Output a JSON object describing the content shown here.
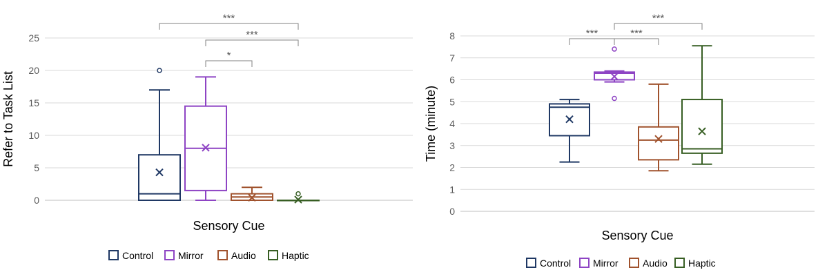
{
  "chart_data": [
    {
      "type": "box",
      "title": "",
      "xlabel": "Sensory Cue",
      "ylabel": "Refer to Task List",
      "ylim": [
        0,
        25
      ],
      "yticks": [
        0,
        5,
        10,
        15,
        20,
        25
      ],
      "grid": true,
      "legend_position": "bottom",
      "series": [
        {
          "name": "Control",
          "color": "#1f3864",
          "min": 0,
          "q1": 0,
          "median": 1,
          "q3": 7,
          "max": 17,
          "mean": 4.3,
          "outliers": [
            20
          ]
        },
        {
          "name": "Mirror",
          "color": "#8e44c4",
          "min": 0,
          "q1": 1.5,
          "median": 8,
          "q3": 14.5,
          "max": 19,
          "mean": 8.1,
          "outliers": []
        },
        {
          "name": "Audio",
          "color": "#a0522d",
          "min": 0,
          "q1": 0,
          "median": 0.5,
          "q3": 1,
          "max": 2,
          "mean": 0.4,
          "outliers": []
        },
        {
          "name": "Haptic",
          "color": "#375e23",
          "min": 0,
          "q1": 0,
          "median": 0,
          "q3": 0,
          "max": 0,
          "mean": 0.1,
          "outliers": [
            1
          ]
        }
      ],
      "significance": [
        {
          "from": 0,
          "to": 3,
          "label": "***"
        },
        {
          "from": 1,
          "to": 3,
          "label": "***"
        },
        {
          "from": 1,
          "to": 2,
          "label": "*"
        }
      ]
    },
    {
      "type": "box",
      "title": "",
      "xlabel": "Sensory Cue",
      "ylabel": "Time (minute)",
      "ylim": [
        0,
        8
      ],
      "yticks": [
        0,
        1,
        2,
        3,
        4,
        5,
        6,
        7,
        8
      ],
      "grid": true,
      "legend_position": "bottom",
      "series": [
        {
          "name": "Control",
          "color": "#1f3864",
          "min": 2.25,
          "q1": 3.45,
          "median": 4.75,
          "q3": 4.9,
          "max": 5.1,
          "mean": 4.2,
          "outliers": []
        },
        {
          "name": "Mirror",
          "color": "#8e44c4",
          "min": 5.9,
          "q1": 6.0,
          "median": 6.3,
          "q3": 6.35,
          "max": 6.4,
          "mean": 6.15,
          "outliers": [
            7.4,
            5.15
          ]
        },
        {
          "name": "Audio",
          "color": "#a0522d",
          "min": 1.85,
          "q1": 2.35,
          "median": 3.25,
          "q3": 3.85,
          "max": 5.8,
          "mean": 3.3,
          "outliers": []
        },
        {
          "name": "Haptic",
          "color": "#375e23",
          "min": 2.15,
          "q1": 2.65,
          "median": 2.85,
          "q3": 5.1,
          "max": 7.55,
          "mean": 3.65,
          "outliers": []
        }
      ],
      "significance": [
        {
          "from": 0,
          "to": 1,
          "label": "***"
        },
        {
          "from": 1,
          "to": 3,
          "label": "***"
        },
        {
          "from": 1,
          "to": 2,
          "label": "***"
        }
      ]
    }
  ]
}
